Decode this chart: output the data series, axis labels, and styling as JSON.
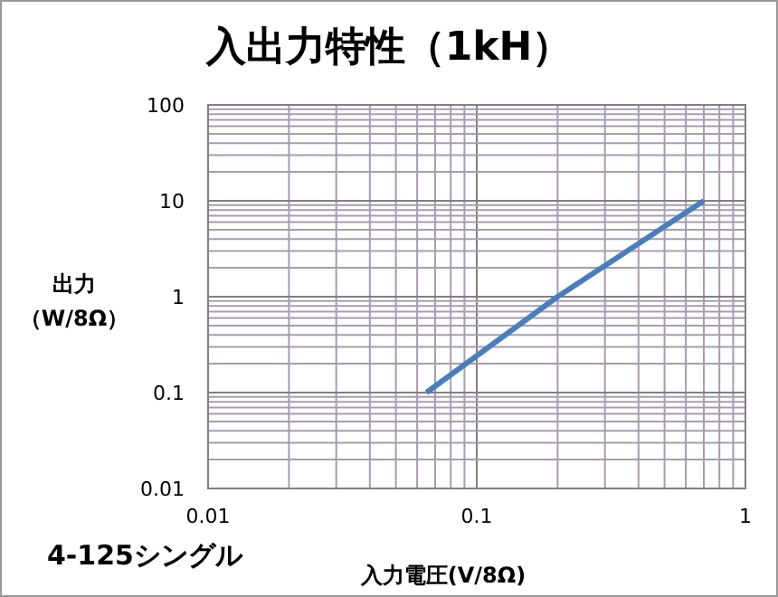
{
  "chart_data": {
    "type": "line",
    "title": "入出力特性（1kH）",
    "xlabel": "入力電圧(V/8Ω)",
    "ylabel": "出力（W/8Ω）",
    "annotations": [
      "4-125シングル"
    ],
    "log": "xy",
    "grid": true,
    "line_style": "solid",
    "marker": "none",
    "xlim": [
      0.01,
      1
    ],
    "xticks": [
      0.01,
      0.1,
      1
    ],
    "ylim": [
      0.01,
      100
    ],
    "yticks": [
      0.01,
      0.1,
      1,
      10,
      100
    ],
    "series": [
      {
        "color": "#4a7ebb",
        "x": [
          0.065,
          0.2,
          0.7
        ],
        "values": [
          0.1,
          1,
          10
        ]
      }
    ]
  }
}
